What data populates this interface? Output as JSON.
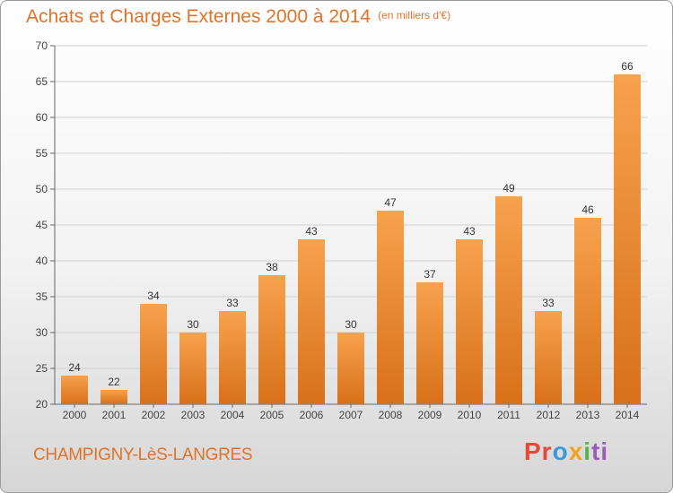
{
  "title": "Achats et Charges Externes 2000 à 2014",
  "unit": "(en milliers d'€)",
  "commune": "CHAMPIGNY-LèS-LANGRES",
  "brand": {
    "p1": "Pr",
    "p2": "o",
    "p3": "x",
    "p4": "i",
    "p5": "ti"
  },
  "colors": {
    "bar_light": "#f7a24d",
    "bar_dark": "#d9701a",
    "text": "#e0732a"
  },
  "chart_data": {
    "type": "bar",
    "categories": [
      "2000",
      "2001",
      "2002",
      "2003",
      "2004",
      "2005",
      "2006",
      "2007",
      "2008",
      "2009",
      "2010",
      "2011",
      "2012",
      "2013",
      "2014"
    ],
    "values": [
      24,
      22,
      34,
      30,
      33,
      38,
      43,
      30,
      47,
      37,
      43,
      49,
      33,
      46,
      66
    ],
    "ylim": [
      20,
      70
    ],
    "yticks": [
      20,
      25,
      30,
      35,
      40,
      45,
      50,
      55,
      60,
      65,
      70
    ],
    "grid": true,
    "legend": "none"
  }
}
